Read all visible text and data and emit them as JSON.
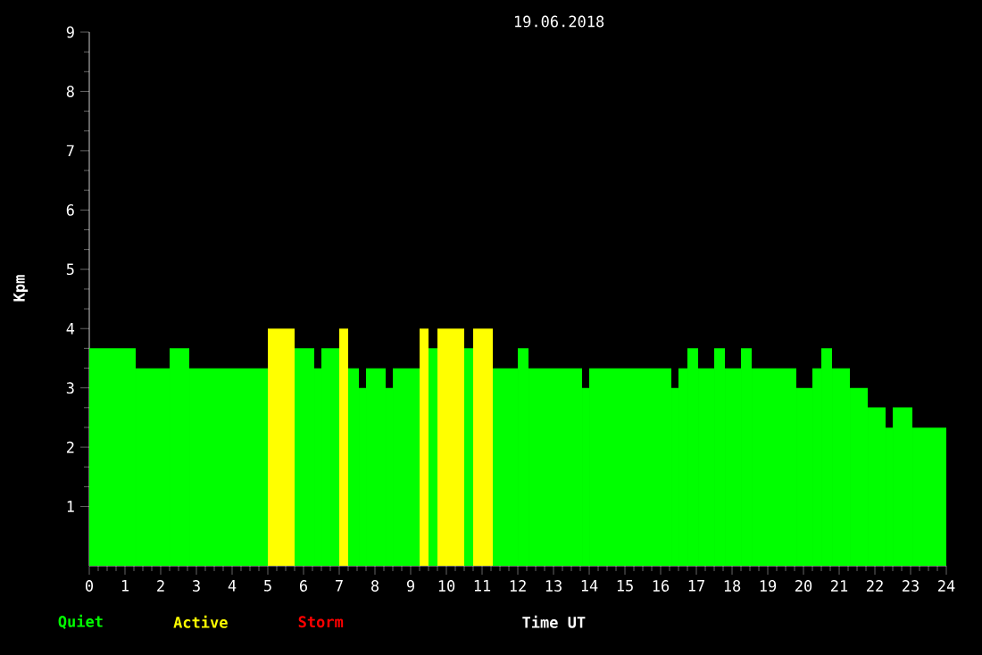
{
  "chart_data": {
    "type": "histogram",
    "title": "19.06.2018",
    "xlabel": "Time UT",
    "ylabel": "Kpm",
    "bins": [
      0,
      1.3,
      2.25,
      2.8,
      5.0,
      5.75,
      6.3,
      6.5,
      7.0,
      7.25,
      7.55,
      7.75,
      8.3,
      8.5,
      9.25,
      9.5,
      9.75,
      10.5,
      10.75,
      11.3,
      12.0,
      12.3,
      13.8,
      14.0,
      16.3,
      16.5,
      16.75,
      17.05,
      17.5,
      17.8,
      18.25,
      18.55,
      19.8,
      20.25,
      20.5,
      20.8,
      21.3,
      21.8,
      22.3,
      22.5,
      23.05,
      24
    ],
    "series": [
      {
        "name": "Quiet",
        "color": "#00ff00",
        "values": [
          3.67,
          3.33,
          3.67,
          3.33,
          null,
          3.67,
          3.33,
          3.67,
          null,
          3.33,
          3,
          3.33,
          3,
          3.33,
          null,
          3.67,
          null,
          3.67,
          null,
          3.33,
          3.67,
          3.33,
          3,
          3.33,
          3,
          3.33,
          3.67,
          3.33,
          3.67,
          3.33,
          3.67,
          3.33,
          3,
          3.33,
          3.67,
          3.33,
          3,
          2.67,
          2.33,
          2.67,
          2.33
        ]
      },
      {
        "name": "Active",
        "color": "#ffff00",
        "values": [
          null,
          null,
          null,
          null,
          4,
          null,
          null,
          null,
          4,
          null,
          null,
          null,
          null,
          null,
          4,
          null,
          4,
          null,
          4,
          null,
          null,
          null,
          null,
          null,
          null,
          null,
          null,
          null,
          null,
          null,
          null,
          null,
          null,
          null,
          null,
          null,
          null,
          null,
          null,
          null,
          null
        ]
      }
    ],
    "annotations": [
      "Storm"
    ],
    "xlim": [
      0,
      24
    ],
    "xticks": [
      0,
      1,
      2,
      3,
      4,
      5,
      6,
      7,
      8,
      9,
      10,
      11,
      12,
      13,
      14,
      15,
      16,
      17,
      18,
      19,
      20,
      21,
      22,
      23,
      24
    ],
    "ylim": [
      0,
      9
    ],
    "yticks": [
      1,
      2,
      3,
      4,
      5,
      6,
      7,
      8,
      9
    ],
    "legend": "bottom left"
  }
}
